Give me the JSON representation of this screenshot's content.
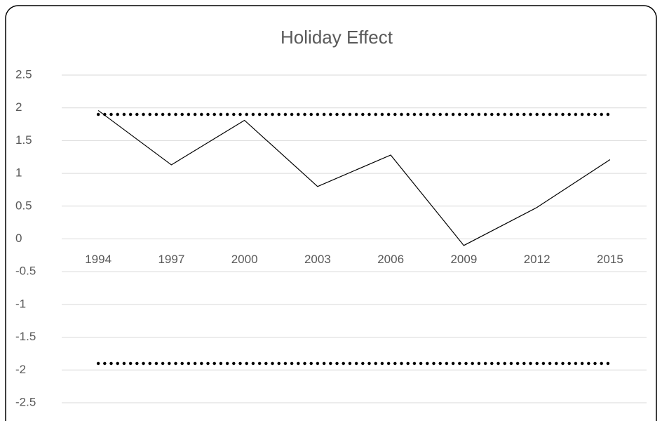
{
  "chart_data": {
    "type": "line",
    "title": "Holiday Effect",
    "categories": [
      "1994",
      "1997",
      "2000",
      "2003",
      "2006",
      "2009",
      "2012",
      "2015"
    ],
    "series": [
      {
        "color": "#000000",
        "line_style": "solid",
        "values": [
          1.96,
          1.13,
          1.81,
          0.8,
          1.28,
          -0.1,
          0.48,
          1.21
        ]
      },
      {
        "color": "#000000",
        "line_style": "dotted",
        "values": [
          1.9,
          1.9,
          1.9,
          1.9,
          1.9,
          1.9,
          1.9,
          1.9
        ]
      },
      {
        "color": "#000000",
        "line_style": "dotted",
        "values": [
          -1.9,
          -1.9,
          -1.9,
          -1.9,
          -1.9,
          -1.9,
          -1.9,
          -1.9
        ]
      }
    ],
    "ylim": [
      -2.5,
      2.5
    ],
    "yticks": [
      -2.5,
      -2,
      -1.5,
      -1,
      -0.5,
      0,
      0.5,
      1,
      1.5,
      2,
      2.5
    ],
    "grid": true
  }
}
